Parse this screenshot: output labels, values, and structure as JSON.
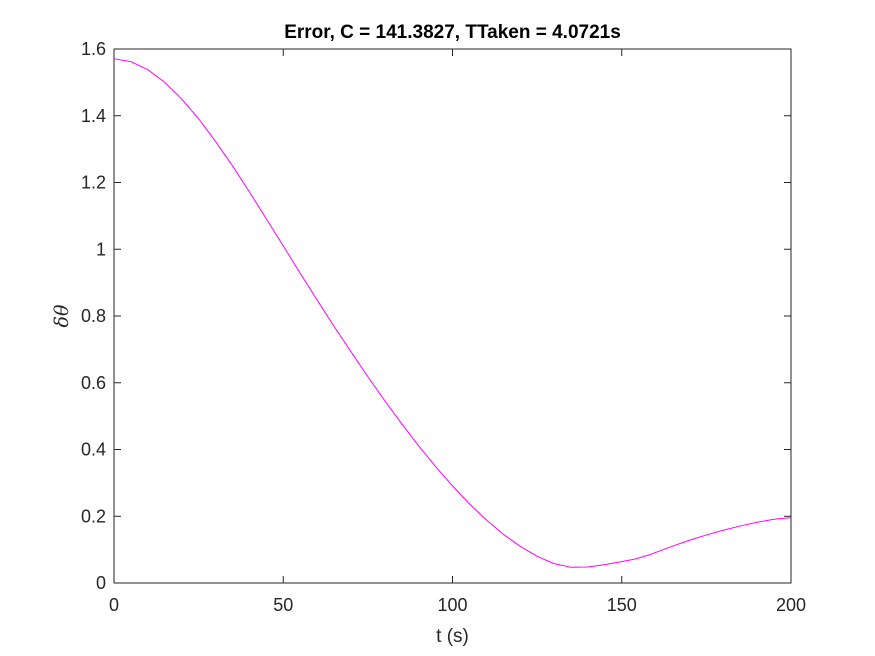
{
  "chart_data": {
    "type": "line",
    "title": "Error, C = 141.3827, TTaken = 4.0721s",
    "xlabel": "t (s)",
    "ylabel": "δθ",
    "xlim": [
      0,
      200
    ],
    "ylim": [
      0,
      1.6
    ],
    "xticks": [
      0,
      50,
      100,
      150,
      200
    ],
    "xtick_labels": [
      "0",
      "50",
      "100",
      "150",
      "200"
    ],
    "yticks": [
      0,
      0.2,
      0.4,
      0.6,
      0.8,
      1,
      1.2,
      1.4,
      1.6
    ],
    "ytick_labels": [
      "0",
      "0.2",
      "0.4",
      "0.6",
      "0.8",
      "1",
      "1.2",
      "1.4",
      "1.6"
    ],
    "grid": false,
    "box": true,
    "series": [
      {
        "name": "error",
        "color": "#ff00ff",
        "x": [
          0,
          5,
          10,
          15,
          20,
          25,
          30,
          35,
          40,
          45,
          50,
          55,
          60,
          65,
          70,
          75,
          80,
          85,
          90,
          95,
          100,
          105,
          110,
          115,
          120,
          125,
          130,
          135,
          140,
          145,
          150,
          154,
          158,
          162,
          166,
          170,
          175,
          180,
          185,
          190,
          195,
          200
        ],
        "y": [
          1.571,
          1.562,
          1.538,
          1.5,
          1.45,
          1.391,
          1.323,
          1.25,
          1.172,
          1.091,
          1.01,
          0.928,
          0.848,
          0.769,
          0.693,
          0.618,
          0.546,
          0.477,
          0.411,
          0.349,
          0.291,
          0.237,
          0.189,
          0.146,
          0.11,
          0.08,
          0.058,
          0.047,
          0.048,
          0.055,
          0.064,
          0.072,
          0.084,
          0.099,
          0.114,
          0.128,
          0.144,
          0.158,
          0.171,
          0.182,
          0.191,
          0.196
        ]
      }
    ]
  }
}
